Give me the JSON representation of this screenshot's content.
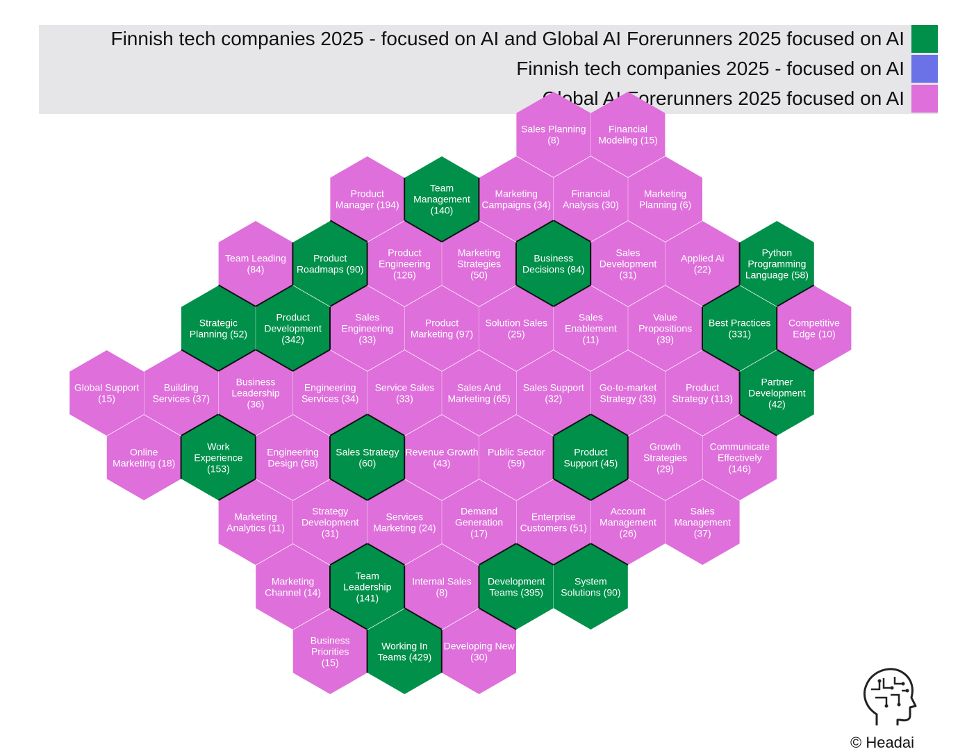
{
  "colors": {
    "both": "#00904a",
    "finnish": "#6b72e8",
    "global": "#df6fdb",
    "legend_bg": "#e6e5e8"
  },
  "legend": [
    {
      "label": "Finnish tech companies 2025 - focused on AI and Global AI Forerunners 2025 focused on AI",
      "category": "both"
    },
    {
      "label": "Finnish tech companies 2025 - focused on AI",
      "category": "finnish"
    },
    {
      "label": "Global AI Forerunners 2025 focused on AI",
      "category": "global"
    }
  ],
  "hexes": [
    {
      "col": 13,
      "row": 0,
      "lines": [
        "Sales Planning",
        "(8)"
      ],
      "category": "global"
    },
    {
      "col": 15,
      "row": 0,
      "lines": [
        "Financial",
        "Modeling (15)"
      ],
      "category": "global"
    },
    {
      "col": 8,
      "row": 1,
      "lines": [
        "Product",
        "Manager (194)"
      ],
      "category": "global"
    },
    {
      "col": 10,
      "row": 1,
      "lines": [
        "Team",
        "Management",
        "(140)"
      ],
      "category": "both"
    },
    {
      "col": 12,
      "row": 1,
      "lines": [
        "Marketing",
        "Campaigns (34)"
      ],
      "category": "global"
    },
    {
      "col": 14,
      "row": 1,
      "lines": [
        "Financial",
        "Analysis (30)"
      ],
      "category": "global"
    },
    {
      "col": 16,
      "row": 1,
      "lines": [
        "Marketing",
        "Planning (6)"
      ],
      "category": "global"
    },
    {
      "col": 5,
      "row": 2,
      "lines": [
        "Team Leading",
        "(84)"
      ],
      "category": "global"
    },
    {
      "col": 7,
      "row": 2,
      "lines": [
        "Product",
        "Roadmaps (90)"
      ],
      "category": "both"
    },
    {
      "col": 9,
      "row": 2,
      "lines": [
        "Product",
        "Engineering",
        "(126)"
      ],
      "category": "global"
    },
    {
      "col": 11,
      "row": 2,
      "lines": [
        "Marketing",
        "Strategies",
        "(50)"
      ],
      "category": "global"
    },
    {
      "col": 13,
      "row": 2,
      "lines": [
        "Business",
        "Decisions (84)"
      ],
      "category": "both"
    },
    {
      "col": 15,
      "row": 2,
      "lines": [
        "Sales",
        "Development",
        "(31)"
      ],
      "category": "global"
    },
    {
      "col": 17,
      "row": 2,
      "lines": [
        "Applied Ai",
        "(22)"
      ],
      "category": "global"
    },
    {
      "col": 19,
      "row": 2,
      "lines": [
        "Python",
        "Programming",
        "Language (58)"
      ],
      "category": "both"
    },
    {
      "col": 4,
      "row": 3,
      "lines": [
        "Strategic",
        "Planning (52)"
      ],
      "category": "both"
    },
    {
      "col": 6,
      "row": 3,
      "lines": [
        "Product",
        "Development",
        "(342)"
      ],
      "category": "both"
    },
    {
      "col": 8,
      "row": 3,
      "lines": [
        "Sales",
        "Engineering",
        "(33)"
      ],
      "category": "global"
    },
    {
      "col": 10,
      "row": 3,
      "lines": [
        "Product",
        "Marketing (97)"
      ],
      "category": "global"
    },
    {
      "col": 12,
      "row": 3,
      "lines": [
        "Solution Sales",
        "(25)"
      ],
      "category": "global"
    },
    {
      "col": 14,
      "row": 3,
      "lines": [
        "Sales",
        "Enablement",
        "(11)"
      ],
      "category": "global"
    },
    {
      "col": 16,
      "row": 3,
      "lines": [
        "Value",
        "Propositions",
        "(39)"
      ],
      "category": "global"
    },
    {
      "col": 18,
      "row": 3,
      "lines": [
        "Best Practices",
        "(331)"
      ],
      "category": "both"
    },
    {
      "col": 20,
      "row": 3,
      "lines": [
        "Competitive",
        "Edge (10)"
      ],
      "category": "global"
    },
    {
      "col": 1,
      "row": 4,
      "lines": [
        "Global Support",
        "(15)"
      ],
      "category": "global"
    },
    {
      "col": 3,
      "row": 4,
      "lines": [
        "Building",
        "Services (37)"
      ],
      "category": "global"
    },
    {
      "col": 5,
      "row": 4,
      "lines": [
        "Business",
        "Leadership",
        "(36)"
      ],
      "category": "global"
    },
    {
      "col": 7,
      "row": 4,
      "lines": [
        "Engineering",
        "Services (34)"
      ],
      "category": "global"
    },
    {
      "col": 9,
      "row": 4,
      "lines": [
        "Service Sales",
        "(33)"
      ],
      "category": "global"
    },
    {
      "col": 11,
      "row": 4,
      "lines": [
        "Sales And",
        "Marketing (65)"
      ],
      "category": "global"
    },
    {
      "col": 13,
      "row": 4,
      "lines": [
        "Sales Support",
        "(32)"
      ],
      "category": "global"
    },
    {
      "col": 15,
      "row": 4,
      "lines": [
        "Go-to-market",
        "Strategy (33)"
      ],
      "category": "global"
    },
    {
      "col": 17,
      "row": 4,
      "lines": [
        "Product",
        "Strategy (113)"
      ],
      "category": "global"
    },
    {
      "col": 19,
      "row": 4,
      "lines": [
        "Partner",
        "Development",
        "(42)"
      ],
      "category": "both"
    },
    {
      "col": 2,
      "row": 5,
      "lines": [
        "Online",
        "Marketing (18)"
      ],
      "category": "global"
    },
    {
      "col": 4,
      "row": 5,
      "lines": [
        "Work",
        "Experience",
        "(153)"
      ],
      "category": "both"
    },
    {
      "col": 6,
      "row": 5,
      "lines": [
        "Engineering",
        "Design (58)"
      ],
      "category": "global"
    },
    {
      "col": 8,
      "row": 5,
      "lines": [
        "Sales Strategy",
        "(60)"
      ],
      "category": "both"
    },
    {
      "col": 10,
      "row": 5,
      "lines": [
        "Revenue Growth",
        "(43)"
      ],
      "category": "global"
    },
    {
      "col": 12,
      "row": 5,
      "lines": [
        "Public Sector",
        "(59)"
      ],
      "category": "global"
    },
    {
      "col": 14,
      "row": 5,
      "lines": [
        "Product",
        "Support (45)"
      ],
      "category": "both"
    },
    {
      "col": 16,
      "row": 5,
      "lines": [
        "Growth",
        "Strategies",
        "(29)"
      ],
      "category": "global"
    },
    {
      "col": 18,
      "row": 5,
      "lines": [
        "Communicate",
        "Effectively",
        "(146)"
      ],
      "category": "global"
    },
    {
      "col": 5,
      "row": 6,
      "lines": [
        "Marketing",
        "Analytics (11)"
      ],
      "category": "global"
    },
    {
      "col": 7,
      "row": 6,
      "lines": [
        "Strategy",
        "Development",
        "(31)"
      ],
      "category": "global"
    },
    {
      "col": 9,
      "row": 6,
      "lines": [
        "Services",
        "Marketing (24)"
      ],
      "category": "global"
    },
    {
      "col": 11,
      "row": 6,
      "lines": [
        "Demand",
        "Generation",
        "(17)"
      ],
      "category": "global"
    },
    {
      "col": 13,
      "row": 6,
      "lines": [
        "Enterprise",
        "Customers (51)"
      ],
      "category": "global"
    },
    {
      "col": 15,
      "row": 6,
      "lines": [
        "Account",
        "Management",
        "(26)"
      ],
      "category": "global"
    },
    {
      "col": 17,
      "row": 6,
      "lines": [
        "Sales",
        "Management",
        "(37)"
      ],
      "category": "global"
    },
    {
      "col": 6,
      "row": 7,
      "lines": [
        "Marketing",
        "Channel (14)"
      ],
      "category": "global"
    },
    {
      "col": 8,
      "row": 7,
      "lines": [
        "Team",
        "Leadership",
        "(141)"
      ],
      "category": "both"
    },
    {
      "col": 10,
      "row": 7,
      "lines": [
        "Internal Sales",
        "(8)"
      ],
      "category": "global"
    },
    {
      "col": 12,
      "row": 7,
      "lines": [
        "Development",
        "Teams (395)"
      ],
      "category": "both"
    },
    {
      "col": 14,
      "row": 7,
      "lines": [
        "System",
        "Solutions (90)"
      ],
      "category": "both"
    },
    {
      "col": 7,
      "row": 8,
      "lines": [
        "Business",
        "Priorities",
        "(15)"
      ],
      "category": "global"
    },
    {
      "col": 9,
      "row": 8,
      "lines": [
        "Working In",
        "Teams (429)"
      ],
      "category": "both"
    },
    {
      "col": 11,
      "row": 8,
      "lines": [
        "Developing New",
        "(30)"
      ],
      "category": "global"
    }
  ],
  "footer": {
    "copyright": "© Headai",
    "logo_icon": "brain-head-icon"
  }
}
